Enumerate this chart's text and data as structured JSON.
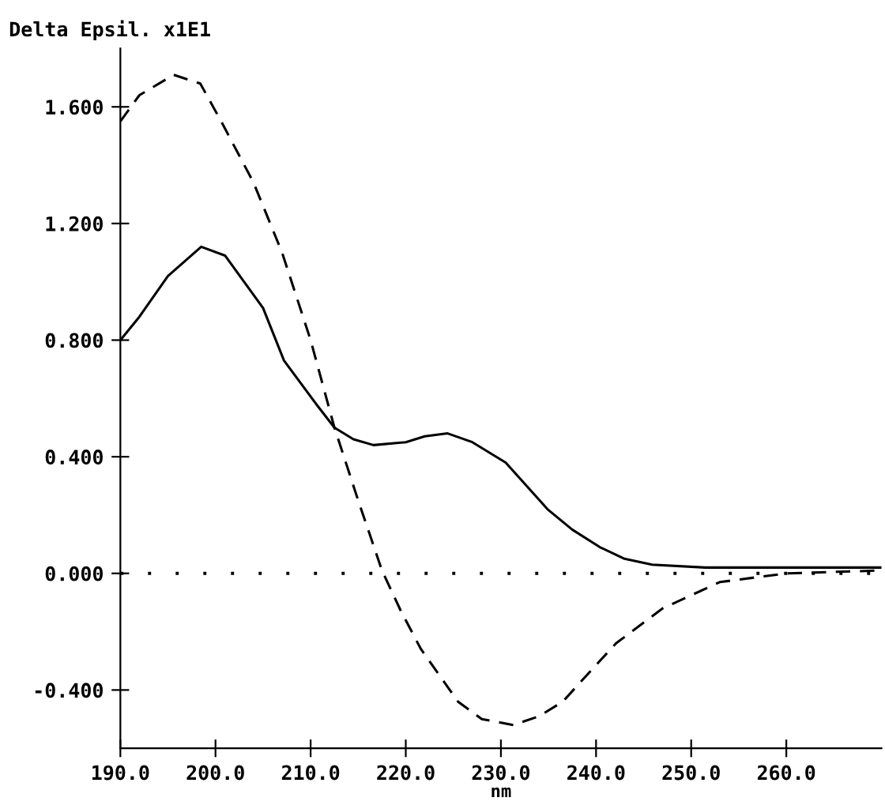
{
  "chart_data": {
    "type": "line",
    "ylabel": "Delta Epsil. x1E1",
    "xlabel": "nm",
    "xlim": [
      190,
      270
    ],
    "ylim": [
      -0.6,
      1.8
    ],
    "xticks": [
      {
        "value": 190,
        "label": "190.0"
      },
      {
        "value": 200,
        "label": "200.0"
      },
      {
        "value": 210,
        "label": "210.0"
      },
      {
        "value": 220,
        "label": "220.0"
      },
      {
        "value": 230,
        "label": "230.0"
      },
      {
        "value": 240,
        "label": "240.0"
      },
      {
        "value": 250,
        "label": "250.0"
      },
      {
        "value": 260,
        "label": "260.0"
      }
    ],
    "yticks": [
      {
        "value": -0.4,
        "label": "-0.400"
      },
      {
        "value": 0,
        "label": "0.000"
      },
      {
        "value": 0.4,
        "label": "0.400"
      },
      {
        "value": 0.8,
        "label": "0.800"
      },
      {
        "value": 1.2,
        "label": "1.200"
      },
      {
        "value": 1.6,
        "label": "1.600"
      }
    ],
    "grid": false,
    "legend": false,
    "marker": "none",
    "ref_lines": [
      {
        "axis": "y",
        "value": 0,
        "line_style": "dotted",
        "color": "#000000"
      }
    ],
    "series": [
      {
        "color": "#000000",
        "line_style": "solid",
        "x": [
          190,
          192,
          195,
          198.5,
          201,
          205,
          207.2,
          210.6,
          212.5,
          214.5,
          216.6,
          220,
          222,
          224.4,
          227,
          230.5,
          234.9,
          237.5,
          240.4,
          243,
          245.9,
          251.5,
          260,
          270
        ],
        "values": [
          0.8,
          0.88,
          1.02,
          1.12,
          1.09,
          0.91,
          0.73,
          0.58,
          0.5,
          0.46,
          0.44,
          0.45,
          0.47,
          0.48,
          0.45,
          0.38,
          0.22,
          0.15,
          0.09,
          0.05,
          0.03,
          0.02,
          0.02,
          0.02
        ]
      },
      {
        "color": "#000000",
        "line_style": "dashed",
        "x": [
          190,
          192,
          195.6,
          198.4,
          200.6,
          204,
          207,
          210,
          212.5,
          215,
          217.5,
          219.5,
          221.6,
          225.5,
          228,
          231.3,
          234,
          236.5,
          239,
          242.1,
          247,
          253,
          260,
          270
        ],
        "values": [
          1.55,
          1.64,
          1.71,
          1.68,
          1.55,
          1.34,
          1.1,
          0.8,
          0.5,
          0.25,
          0.01,
          -0.13,
          -0.26,
          -0.44,
          -0.5,
          -0.52,
          -0.49,
          -0.44,
          -0.35,
          -0.24,
          -0.12,
          -0.03,
          0.0,
          0.01
        ]
      }
    ]
  }
}
